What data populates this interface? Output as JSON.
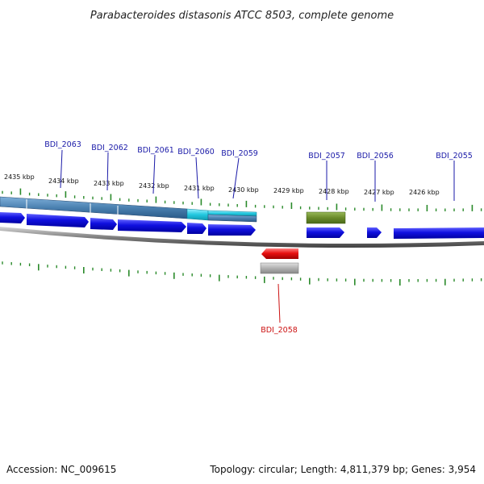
{
  "title": "Parabacteroides distasonis ATCC 8503, complete genome",
  "footer": {
    "accession": "Accession: NC_009615",
    "topology": "Topology: circular; Length: 4,811,379 bp; Genes: 3,954"
  },
  "kbp_labels": [
    "2435 kbp",
    "2434 kbp",
    "2433 kbp",
    "2432 kbp",
    "2431 kbp",
    "2430 kbp",
    "2429 kbp",
    "2428 kbp",
    "2427 kbp",
    "2426 kbp"
  ],
  "genes_top": [
    "BDI_2063",
    "BDI_2062",
    "BDI_2061",
    "BDI_2060",
    "BDI_2059",
    "BDI_2057",
    "BDI_2056",
    "BDI_2055"
  ],
  "genes_bottom": [
    "BDI_2058"
  ],
  "colors": {
    "cds_forward": "#1010e0",
    "cds_reverse": "#e81010",
    "track_blue": "#4a80b0",
    "track_cyan": "#20c0d8",
    "track_olive": "#6a8a2a",
    "track_gray": "#b0b0b0",
    "tick_green": "#2a8a2a",
    "backbone": "#808080"
  }
}
